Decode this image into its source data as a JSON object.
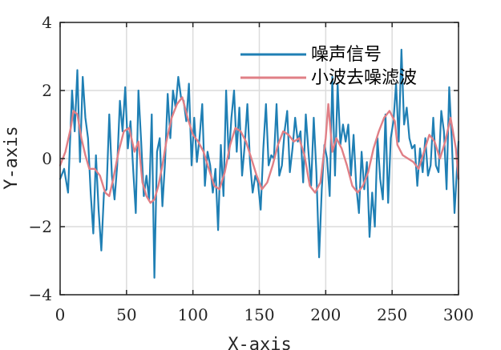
{
  "chart_data": {
    "type": "line",
    "xlabel": "X-axis",
    "ylabel": "Y-axis",
    "xlim": [
      0,
      300
    ],
    "ylim": [
      -4,
      4
    ],
    "x_ticks": [
      "0",
      "50",
      "100",
      "150",
      "200",
      "250",
      "300"
    ],
    "y_ticks": [
      "4",
      "2",
      "0",
      "−2",
      "−4"
    ],
    "grid": true,
    "legend_position": "top-right",
    "series": [
      {
        "name": "噪声信号",
        "color": "#1f7fb4",
        "x": [
          0,
          3,
          6,
          9,
          11,
          13,
          15,
          17,
          19,
          21,
          23,
          25,
          27,
          29,
          31,
          33,
          35,
          37,
          39,
          41,
          43,
          45,
          47,
          49,
          51,
          53,
          55,
          57,
          59,
          61,
          63,
          65,
          67,
          69,
          71,
          73,
          75,
          77,
          79,
          81,
          83,
          85,
          87,
          89,
          91,
          93,
          95,
          97,
          99,
          101,
          103,
          105,
          107,
          109,
          111,
          113,
          115,
          117,
          119,
          121,
          123,
          125,
          127,
          129,
          131,
          133,
          135,
          137,
          139,
          141,
          143,
          145,
          147,
          149,
          151,
          153,
          155,
          157,
          159,
          161,
          163,
          165,
          167,
          169,
          171,
          173,
          175,
          177,
          179,
          181,
          183,
          185,
          187,
          189,
          191,
          193,
          195,
          197,
          199,
          201,
          203,
          205,
          207,
          209,
          211,
          213,
          215,
          217,
          219,
          221,
          223,
          225,
          227,
          229,
          231,
          233,
          235,
          237,
          239,
          241,
          243,
          245,
          247,
          249,
          251,
          253,
          255,
          257,
          259,
          261,
          263,
          265,
          267,
          269,
          271,
          273,
          275,
          277,
          279,
          281,
          283,
          285,
          287,
          289,
          291,
          293,
          295,
          297,
          300
        ],
        "values": [
          -0.6,
          -0.3,
          -1.0,
          2.0,
          0.8,
          2.6,
          -0.1,
          2.4,
          1.2,
          0.6,
          -1.0,
          -2.2,
          0.1,
          -1.5,
          -2.7,
          -1.0,
          -0.9,
          1.3,
          -0.5,
          -1.2,
          -0.2,
          1.7,
          0.8,
          2.1,
          0.3,
          1.1,
          -0.3,
          -1.6,
          2.0,
          0.5,
          -1.1,
          -0.5,
          -1.2,
          1.3,
          -3.5,
          0.2,
          0.6,
          -1.4,
          -0.1,
          1.9,
          0.6,
          2.0,
          1.5,
          2.4,
          1.8,
          1.7,
          1.1,
          2.2,
          -0.2,
          1.2,
          -0.1,
          0.6,
          1.6,
          -0.8,
          0.2,
          -0.2,
          -1.0,
          -0.3,
          -2.1,
          0.4,
          -1.1,
          2.0,
          0.0,
          1.2,
          2.0,
          0.2,
          1.5,
          -0.5,
          0.4,
          1.6,
          -0.1,
          -1.0,
          -0.5,
          -0.7,
          -1.5,
          0.3,
          1.6,
          -0.2,
          0.1,
          0.0,
          1.6,
          -0.5,
          -0.2,
          0.8,
          1.4,
          -0.4,
          0.3,
          1.2,
          0.5,
          0.8,
          -0.7,
          1.3,
          0.2,
          -0.8,
          1.2,
          -0.4,
          -2.9,
          -0.9,
          0.4,
          0.0,
          -1.1,
          2.4,
          -0.5,
          2.2,
          0.4,
          1.0,
          0.5,
          1.0,
          -0.5,
          0.7,
          -0.8,
          -1.6,
          0.2,
          -0.9,
          -0.1,
          -2.3,
          -1.0,
          -2.0,
          0.6,
          -0.6,
          -1.2,
          1.3,
          -1.3,
          0.6,
          1.1,
          2.2,
          0.5,
          3.2,
          1.0,
          1.5,
          0.6,
          0.3,
          0.4,
          -0.8,
          0.3,
          -0.4,
          0.6,
          -0.5,
          -0.2,
          1.2,
          -0.2,
          -0.4,
          1.4,
          0.8,
          -0.9,
          2.1,
          0.5,
          -1.6,
          0.5
        ]
      },
      {
        "name": "小波去噪滤波",
        "color": "#e07f86",
        "x": [
          0,
          4,
          8,
          10,
          13,
          16,
          19,
          22,
          26,
          30,
          34,
          37,
          40,
          44,
          48,
          52,
          56,
          59,
          62,
          65,
          68,
          71,
          74,
          77,
          80,
          84,
          88,
          92,
          96,
          100,
          104,
          108,
          112,
          116,
          120,
          124,
          128,
          132,
          136,
          140,
          144,
          148,
          152,
          156,
          160,
          164,
          168,
          172,
          176,
          180,
          184,
          188,
          192,
          196,
          200,
          202,
          205,
          208,
          212,
          216,
          220,
          224,
          228,
          232,
          236,
          240,
          244,
          248,
          252,
          254,
          258,
          262,
          266,
          270,
          274,
          278,
          282,
          286,
          290,
          294,
          298,
          300
        ],
        "values": [
          -0.2,
          0.2,
          0.9,
          1.4,
          1.3,
          0.6,
          0.1,
          -0.3,
          -0.3,
          -0.5,
          -1.0,
          -1.1,
          -0.6,
          0.2,
          0.8,
          0.9,
          0.2,
          0.5,
          -0.7,
          -1.1,
          -1.3,
          -1.2,
          -0.8,
          -0.2,
          0.5,
          1.2,
          1.6,
          1.8,
          1.2,
          0.7,
          0.5,
          0.2,
          -0.3,
          -0.8,
          -0.9,
          -0.4,
          0.4,
          0.9,
          0.8,
          0.5,
          0.0,
          -0.5,
          -0.9,
          -0.7,
          -0.2,
          0.4,
          0.8,
          0.7,
          0.5,
          0.6,
          0.1,
          -0.8,
          -1.0,
          -0.7,
          0.6,
          1.6,
          0.2,
          0.6,
          0.3,
          -0.2,
          -0.8,
          -1.0,
          -0.8,
          -0.4,
          0.3,
          0.8,
          1.2,
          1.4,
          1.1,
          0.4,
          0.1,
          0.0,
          -0.1,
          -0.3,
          0.2,
          0.7,
          0.5,
          0.0,
          0.5,
          1.2,
          0.3,
          -0.6
        ]
      }
    ]
  }
}
